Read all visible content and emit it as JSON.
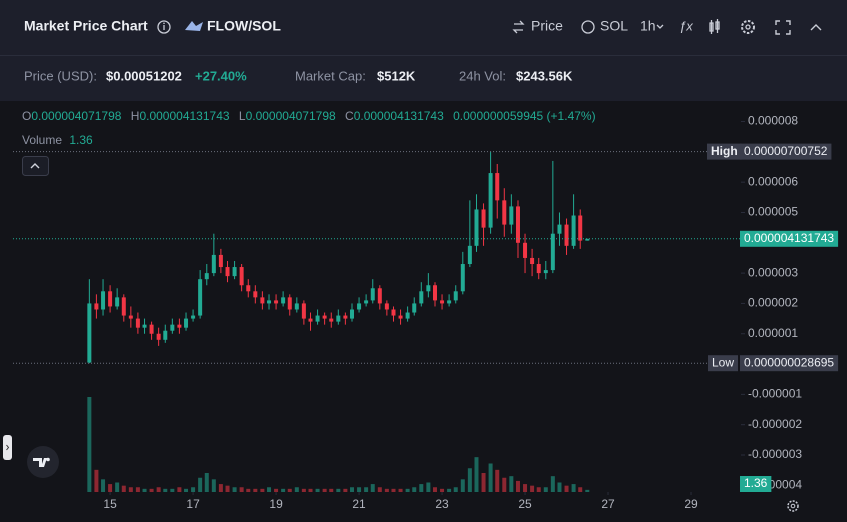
{
  "header": {
    "title": "Market Price Chart",
    "pair": "FLOW/SOL",
    "controls": [
      "Price",
      "SOL",
      "1h"
    ]
  },
  "stats": [
    {
      "label": "Price (USD):",
      "value": "$0.00051202",
      "change": "+27.40%"
    },
    {
      "label": "Market Cap:",
      "value": "$512K"
    },
    {
      "label": "24h Vol:",
      "value": "$243.56K"
    }
  ],
  "chart_data": {
    "type": "candlestick",
    "legend": {
      "o": "O",
      "h": "H",
      "l": "L",
      "c": "C",
      "change": "0.000000059945 (+1.47%)",
      "volume_label": "Volume"
    },
    "x": [
      14.5,
      14.67,
      14.83,
      15,
      15.17,
      15.33,
      15.5,
      15.67,
      15.83,
      16,
      16.17,
      16.33,
      16.5,
      16.67,
      16.83,
      17,
      17.17,
      17.33,
      17.5,
      17.67,
      17.83,
      18,
      18.17,
      18.33,
      18.5,
      18.67,
      18.83,
      19,
      19.17,
      19.33,
      19.5,
      19.67,
      19.83,
      20,
      20.17,
      20.33,
      20.5,
      20.67,
      20.83,
      21,
      21.17,
      21.33,
      21.5,
      21.67,
      21.83,
      22,
      22.17,
      22.33,
      22.5,
      22.67,
      22.83,
      23,
      23.17,
      23.33,
      23.5,
      23.67,
      23.83,
      24,
      24.17,
      24.33,
      24.5,
      24.67,
      24.83,
      25,
      25.17,
      25.33,
      25.5,
      25.67,
      25.83,
      26,
      26.17,
      26.33,
      26.5
    ],
    "open": [
      5e-08,
      2e-06,
      1.8e-06,
      2.4e-06,
      1.9e-06,
      2.2e-06,
      1.6e-06,
      1.5e-06,
      1.2e-06,
      1.3e-06,
      1e-06,
      8e-07,
      1.1e-06,
      1.3e-06,
      1.2e-06,
      1.5e-06,
      1.6e-06,
      2.8e-06,
      3e-06,
      3.6e-06,
      3.2e-06,
      2.9e-06,
      3.2e-06,
      2.6e-06,
      2.4e-06,
      2.2e-06,
      2e-06,
      2.1e-06,
      2e-06,
      2.2e-06,
      1.8e-06,
      2e-06,
      1.5e-06,
      1.4e-06,
      1.6e-06,
      1.5e-06,
      1.4e-06,
      1.6e-06,
      1.5e-06,
      1.8e-06,
      2e-06,
      2.1e-06,
      2.5e-06,
      2e-06,
      1.8e-06,
      1.6e-06,
      1.5e-06,
      1.7e-06,
      2e-06,
      2.4e-06,
      2.6e-06,
      2.1e-06,
      2e-06,
      2.1e-06,
      2.4e-06,
      3.3e-06,
      3.9e-06,
      5.1e-06,
      4.5e-06,
      6.3e-06,
      5.4e-06,
      4.6e-06,
      5.2e-06,
      4e-06,
      3.5e-06,
      3.3e-06,
      3e-06,
      3.1e-06,
      4.3e-06,
      4.6e-06,
      3.9e-06,
      4.9e-06,
      4.071798e-06
    ],
    "high": [
      2.8e-06,
      2.3e-06,
      2.8e-06,
      2.6e-06,
      2.5e-06,
      2.3e-06,
      1.9e-06,
      1.7e-06,
      1.5e-06,
      1.4e-06,
      1.2e-06,
      1.3e-06,
      1.5e-06,
      1.5e-06,
      1.7e-06,
      1.8e-06,
      3.1e-06,
      3.3e-06,
      4.3e-06,
      3.8e-06,
      3.4e-06,
      3.4e-06,
      3.3e-06,
      2.8e-06,
      2.6e-06,
      2.4e-06,
      2.3e-06,
      2.3e-06,
      2.4e-06,
      2.3e-06,
      2.2e-06,
      2.1e-06,
      1.7e-06,
      1.8e-06,
      1.7e-06,
      1.7e-06,
      1.8e-06,
      1.7e-06,
      2e-06,
      2.2e-06,
      2.3e-06,
      2.8e-06,
      2.6e-06,
      2.1e-06,
      1.9e-06,
      1.8e-06,
      1.9e-06,
      2.2e-06,
      2.7e-06,
      3e-06,
      2.7e-06,
      2.3e-06,
      2.3e-06,
      2.6e-06,
      3.7e-06,
      5.4e-06,
      5.6e-06,
      5.3e-06,
      7.00752e-06,
      6.6e-06,
      5.8e-06,
      5.6e-06,
      5.4e-06,
      4.3e-06,
      3.8e-06,
      3.5e-06,
      3.4e-06,
      6.7e-06,
      5e-06,
      4.8e-06,
      5.6e-06,
      5.1e-06,
      4.131743e-06
    ],
    "low": [
      2.8695e-08,
      1.5e-06,
      1.6e-06,
      1.7e-06,
      1.8e-06,
      1.4e-06,
      1.2e-06,
      1e-06,
      1e-06,
      8e-07,
      6e-07,
      7e-07,
      1e-06,
      1e-06,
      1.1e-06,
      1.4e-06,
      1.5e-06,
      2.6e-06,
      2.9e-06,
      3e-06,
      2.7e-06,
      2.8e-06,
      2.4e-06,
      2.2e-06,
      2e-06,
      1.8e-06,
      1.8e-06,
      1.8e-06,
      1.9e-06,
      1.6e-06,
      1.7e-06,
      1.3e-06,
      1.1e-06,
      1.3e-06,
      1.3e-06,
      1.2e-06,
      1.3e-06,
      1.3e-06,
      1.4e-06,
      1.7e-06,
      1.9e-06,
      2e-06,
      1.8e-06,
      1.6e-06,
      1.4e-06,
      1.3e-06,
      1.4e-06,
      1.6e-06,
      1.9e-06,
      2.2e-06,
      1.9e-06,
      1.8e-06,
      1.9e-06,
      2e-06,
      2.3e-06,
      3.2e-06,
      3.7e-06,
      3.9e-06,
      4.3e-06,
      4.8e-06,
      4.2e-06,
      4.3e-06,
      3.5e-06,
      3e-06,
      2.9e-06,
      2.8e-06,
      2.8e-06,
      3e-06,
      3.9e-06,
      3.6e-06,
      3.8e-06,
      3.8e-06,
      4.071798e-06
    ],
    "close": [
      2e-06,
      1.8e-06,
      2.4e-06,
      1.9e-06,
      2.2e-06,
      1.6e-06,
      1.5e-06,
      1.2e-06,
      1.3e-06,
      1e-06,
      8e-07,
      1.1e-06,
      1.3e-06,
      1.2e-06,
      1.5e-06,
      1.6e-06,
      2.8e-06,
      3e-06,
      3.6e-06,
      3.2e-06,
      2.9e-06,
      3.2e-06,
      2.6e-06,
      2.4e-06,
      2.2e-06,
      2e-06,
      2.1e-06,
      2e-06,
      2.2e-06,
      1.8e-06,
      2e-06,
      1.5e-06,
      1.4e-06,
      1.6e-06,
      1.5e-06,
      1.4e-06,
      1.6e-06,
      1.5e-06,
      1.8e-06,
      2e-06,
      2.1e-06,
      2.5e-06,
      2e-06,
      1.8e-06,
      1.6e-06,
      1.5e-06,
      1.7e-06,
      2e-06,
      2.4e-06,
      2.6e-06,
      2.1e-06,
      2e-06,
      2.1e-06,
      2.4e-06,
      3.3e-06,
      3.9e-06,
      5.1e-06,
      4.5e-06,
      6.3e-06,
      5.4e-06,
      4.6e-06,
      5.2e-06,
      4e-06,
      3.5e-06,
      3.3e-06,
      3e-06,
      3.1e-06,
      4.3e-06,
      4.6e-06,
      3.9e-06,
      4.9e-06,
      4.071798e-06,
      4.131743e-06
    ],
    "volume": [
      60,
      14,
      8,
      5,
      6,
      4,
      3,
      3,
      2,
      2,
      3,
      2,
      2,
      3,
      2,
      3,
      9,
      12,
      8,
      5,
      4,
      3,
      3,
      2,
      2,
      2,
      3,
      2,
      2,
      2,
      3,
      2,
      2,
      2,
      2,
      2,
      2,
      2,
      3,
      3,
      3,
      5,
      3,
      2,
      2,
      2,
      2,
      3,
      5,
      6,
      3,
      2,
      2,
      3,
      8,
      15,
      22,
      12,
      18,
      14,
      9,
      10,
      7,
      5,
      4,
      3,
      3,
      10,
      6,
      4,
      5,
      3,
      1.36
    ],
    "up_color": "#22ab94",
    "down_color": "#f23645",
    "high_label": "High",
    "high_value": 7.00752e-06,
    "low_label": "Low",
    "low_value": {
      "value": 2.8695e-08,
      "label": "0.000000028695"
    },
    "xlim": [
      12.66,
      30.06
    ],
    "xticks": [
      15,
      17,
      19,
      21,
      23,
      25,
      27,
      29
    ],
    "ylim": [
      -4.22e-06,
      8.71e-06
    ],
    "yticks": [
      8e-06,
      6e-06,
      5e-06,
      3e-06,
      2e-06,
      1e-06,
      -1e-06,
      -2e-06,
      -3e-06,
      -4e-06
    ]
  }
}
